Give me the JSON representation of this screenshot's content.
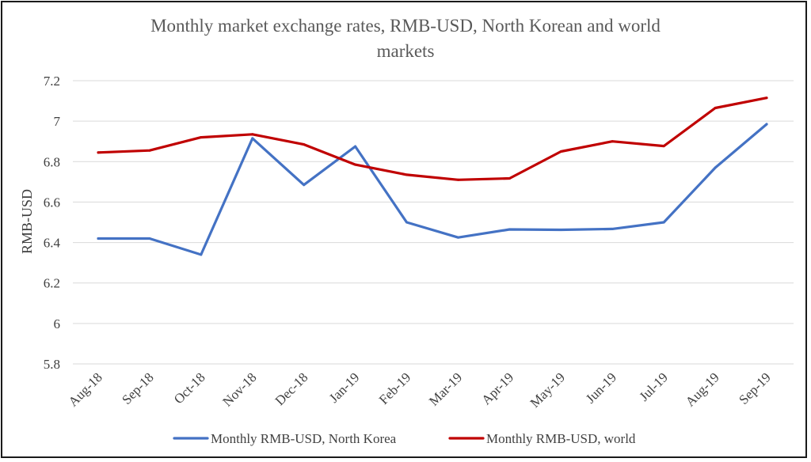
{
  "chart_data": {
    "type": "line",
    "title_line1": "Monthly market exchange rates, RMB-USD, North Korean and world",
    "title_line2": "markets",
    "xlabel": "",
    "ylabel": "RMB-USD",
    "ylim": [
      5.8,
      7.2
    ],
    "y_ticks": [
      "5.8",
      "6",
      "6.2",
      "6.4",
      "6.6",
      "6.8",
      "7",
      "7.2"
    ],
    "grid": true,
    "legend_position": "bottom",
    "categories": [
      "Aug-18",
      "Sep-18",
      "Oct-18",
      "Nov-18",
      "Dec-18",
      "Jan-19",
      "Feb-19",
      "Mar-19",
      "Apr-19",
      "May-19",
      "Jun-19",
      "Jul-19",
      "Aug-19",
      "Sep-19"
    ],
    "series": [
      {
        "name": "Monthly RMB-USD, North Korea",
        "color": "#4472c4",
        "values": [
          6.42,
          6.42,
          6.34,
          6.915,
          6.685,
          6.875,
          6.5,
          6.425,
          6.465,
          6.463,
          6.467,
          6.5,
          6.77,
          6.985
        ]
      },
      {
        "name": "Monthly RMB-USD, world",
        "color": "#c00000",
        "values": [
          6.845,
          6.855,
          6.92,
          6.935,
          6.885,
          6.785,
          6.735,
          6.71,
          6.717,
          6.85,
          6.9,
          6.877,
          7.065,
          7.115
        ]
      }
    ]
  }
}
